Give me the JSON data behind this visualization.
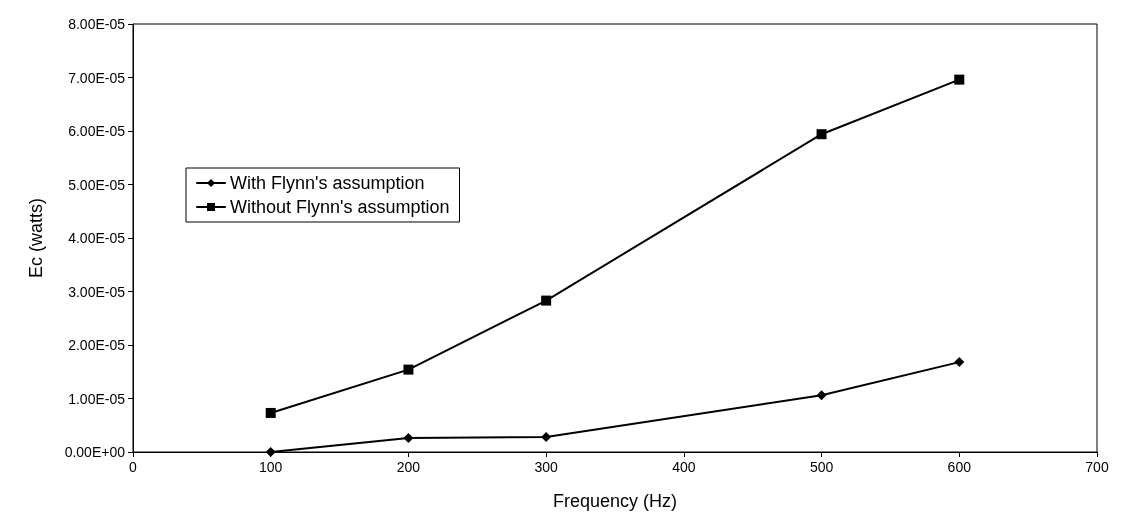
{
  "chart_data": {
    "type": "line",
    "xlabel": "Frequency (Hz)",
    "ylabel": "Ec (watts)",
    "xlim": [
      0,
      700
    ],
    "xticks": [
      0,
      100,
      200,
      300,
      400,
      500,
      600,
      700
    ],
    "ylim": [
      0,
      8e-05
    ],
    "yticks": [
      {
        "value": 0,
        "label": "0.00E+00"
      },
      {
        "value": 1e-05,
        "label": "1.00E-05"
      },
      {
        "value": 2e-05,
        "label": "2.00E-05"
      },
      {
        "value": 3e-05,
        "label": "3.00E-05"
      },
      {
        "value": 4e-05,
        "label": "4.00E-05"
      },
      {
        "value": 5e-05,
        "label": "5.00E-05"
      },
      {
        "value": 6e-05,
        "label": "6.00E-05"
      },
      {
        "value": 7e-05,
        "label": "7.00E-05"
      },
      {
        "value": 8e-05,
        "label": "8.00E-05"
      }
    ],
    "x": [
      100,
      200,
      300,
      500,
      600
    ],
    "grid": false,
    "legend": "top left",
    "line_style": "solid",
    "series": [
      {
        "name": "With Flynn's assumption",
        "color": "#000000",
        "marker": "diamond",
        "values": [
          0,
          2.6e-06,
          2.8e-06,
          1.06e-05,
          1.68e-05
        ]
      },
      {
        "name": "Without Flynn's assumption",
        "color": "#000000",
        "marker": "square",
        "values": [
          7.3e-06,
          1.54e-05,
          2.83e-05,
          5.94e-05,
          6.96e-05
        ]
      }
    ]
  }
}
